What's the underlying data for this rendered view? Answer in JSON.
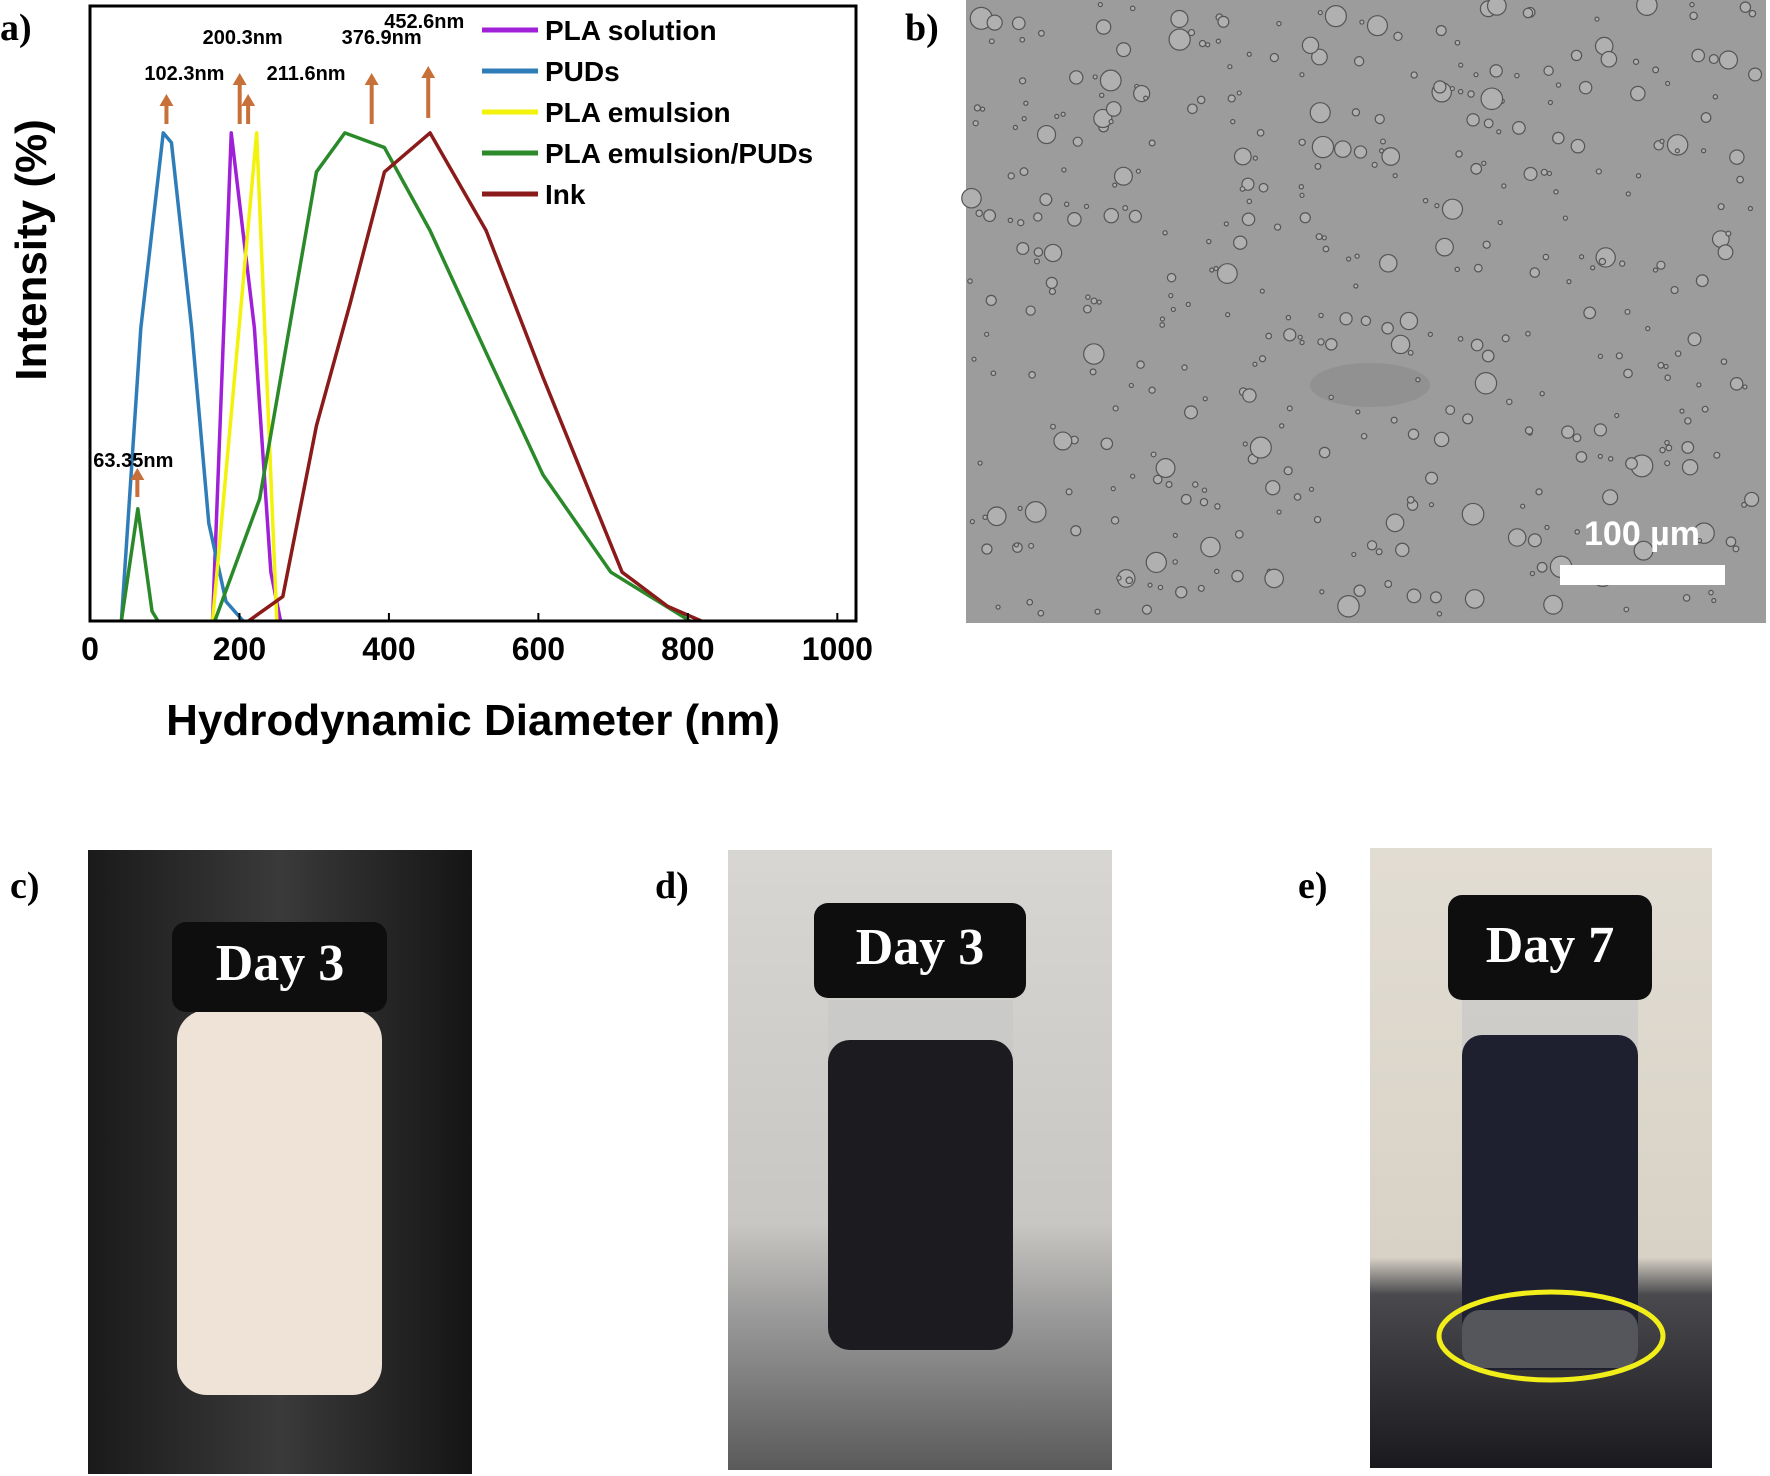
{
  "chart_data": {
    "type": "line",
    "xlabel": "Hydrodynamic Diameter (nm)",
    "ylabel": "Intensity (%)",
    "xlim": [
      0,
      1025
    ],
    "ylim": [
      0,
      126
    ],
    "xticks": [
      0,
      200,
      400,
      600,
      800,
      1000
    ],
    "legend": "top-right",
    "series": [
      {
        "name": "PLA solution",
        "color": "#a020d8",
        "x": [
          164,
          189,
          220,
          242,
          255
        ],
        "values": [
          0,
          100,
          60,
          10,
          0
        ]
      },
      {
        "name": "PUDs",
        "color": "#2f7db8",
        "x": [
          42,
          68,
          98,
          109,
          136,
          159,
          182,
          205
        ],
        "values": [
          0,
          60,
          100,
          98,
          60,
          20,
          4,
          0
        ]
      },
      {
        "name": "PLA emulsion",
        "color": "#f2f20a",
        "x": [
          164,
          223,
          250
        ],
        "values": [
          0,
          100,
          0
        ]
      },
      {
        "name": "PLA emulsion/PUDs",
        "color": "#2a8a2a",
        "x": [
          42,
          64,
          83,
          91,
          120,
          167,
          227,
          303,
          341,
          394,
          455,
          530,
          606,
          697,
          803
        ],
        "values": [
          0,
          23,
          2,
          0,
          null,
          0,
          25,
          92,
          100,
          97,
          80,
          55,
          30,
          10,
          0
        ]
      },
      {
        "name": "Ink",
        "color": "#8b1a1a",
        "x": [
          212,
          258,
          303,
          348,
          394,
          455,
          530,
          606,
          712,
          773,
          818
        ],
        "values": [
          0,
          5,
          40,
          65,
          92,
          100,
          80,
          50,
          10,
          3,
          0
        ]
      }
    ],
    "peaks": {
      "values": [
        63.35,
        102.3,
        200.3,
        211.6,
        376.9,
        452.6
      ],
      "value_labels": [
        "63.35nm",
        "102.3nm",
        "200.3nm",
        "211.6nm",
        "376.9nm",
        "452.6nm"
      ]
    }
  },
  "panel_labels": [
    "a)",
    "b)",
    "c)",
    "d)",
    "e)"
  ],
  "scale_bar": "100 µm",
  "photo_captions": [
    "Day 3",
    "Day 3",
    "Day 7"
  ]
}
